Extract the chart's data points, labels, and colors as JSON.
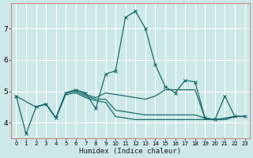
{
  "xlabel": "Humidex (Indice chaleur)",
  "bg_color": "#cde8e8",
  "grid_color": "#ffffff",
  "line_color": "#1a6b6b",
  "xlim": [
    -0.5,
    23.5
  ],
  "ylim": [
    3.5,
    7.8
  ],
  "yticks": [
    4,
    5,
    6,
    7
  ],
  "xticks": [
    0,
    1,
    2,
    3,
    4,
    5,
    6,
    7,
    8,
    9,
    10,
    11,
    12,
    13,
    14,
    15,
    16,
    17,
    18,
    19,
    20,
    21,
    22,
    23
  ],
  "series_main": {
    "x": [
      0,
      1,
      2,
      3,
      4,
      5,
      6,
      7,
      8,
      9,
      10,
      11,
      12,
      13,
      14,
      15,
      16,
      17,
      18,
      19,
      20,
      21,
      22,
      23
    ],
    "y": [
      4.85,
      3.65,
      4.5,
      4.6,
      4.15,
      4.95,
      5.05,
      4.95,
      4.45,
      5.55,
      5.65,
      7.35,
      7.55,
      7.0,
      5.85,
      5.15,
      4.95,
      5.35,
      5.3,
      4.15,
      4.1,
      4.85,
      4.2,
      4.2
    ]
  },
  "series_flat": [
    {
      "x": [
        0,
        2,
        3,
        4,
        5,
        6,
        7,
        8,
        9,
        10,
        11,
        12,
        13,
        14,
        15,
        16,
        17,
        18,
        19,
        20,
        21,
        22,
        23
      ],
      "y": [
        4.85,
        4.5,
        4.6,
        4.15,
        4.95,
        5.05,
        4.9,
        4.8,
        4.95,
        4.9,
        4.85,
        4.8,
        4.75,
        4.85,
        5.05,
        5.05,
        5.05,
        5.05,
        4.15,
        4.1,
        4.15,
        4.2,
        4.2
      ]
    },
    {
      "x": [
        2,
        3,
        4,
        5,
        6,
        7,
        8,
        9,
        10,
        11,
        12,
        13,
        14,
        15,
        16,
        17,
        18,
        19,
        20,
        21,
        22,
        23
      ],
      "y": [
        4.5,
        4.6,
        4.15,
        4.95,
        5.0,
        4.85,
        4.75,
        4.75,
        4.4,
        4.35,
        4.3,
        4.25,
        4.25,
        4.25,
        4.25,
        4.25,
        4.25,
        4.15,
        4.1,
        4.1,
        4.2,
        4.2
      ]
    },
    {
      "x": [
        2,
        3,
        4,
        5,
        6,
        7,
        8,
        9,
        10,
        11,
        12,
        13,
        14,
        15,
        16,
        17,
        18,
        19,
        20,
        21,
        22,
        23
      ],
      "y": [
        4.5,
        4.6,
        4.15,
        4.9,
        4.95,
        4.8,
        4.7,
        4.65,
        4.2,
        4.15,
        4.1,
        4.1,
        4.1,
        4.1,
        4.1,
        4.1,
        4.1,
        4.1,
        4.1,
        4.1,
        4.2,
        4.2
      ]
    }
  ]
}
